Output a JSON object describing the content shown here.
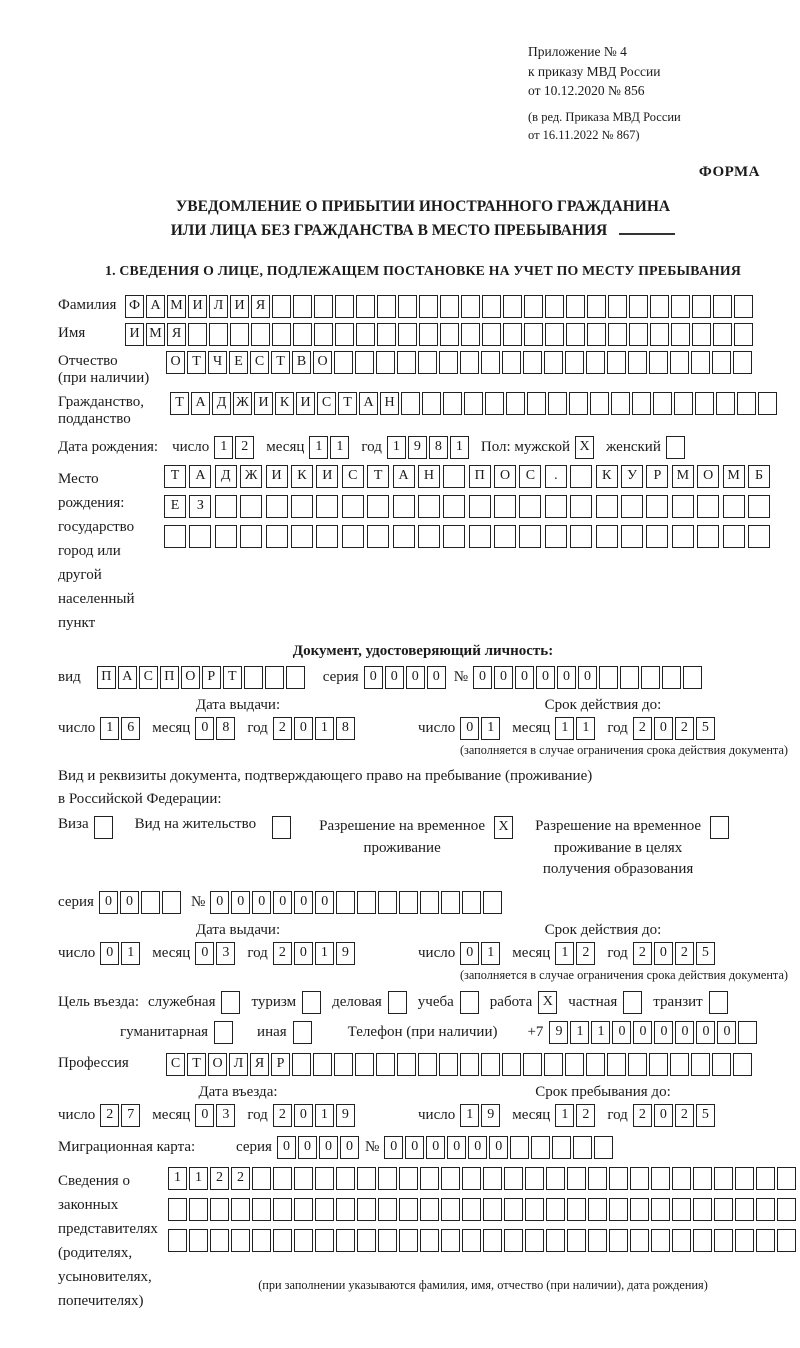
{
  "header": {
    "appendix_lines": [
      "Приложение № 4",
      "к приказу МВД России",
      "от 10.12.2020 № 856"
    ],
    "revision_lines": [
      "(в ред. Приказа МВД России",
      "от 16.11.2022 № 867)"
    ],
    "form_label": "ФОРМА"
  },
  "title": {
    "line1": "УВЕДОМЛЕНИЕ О ПРИБЫТИИ ИНОСТРАННОГО ГРАЖДАНИНА",
    "line2": "ИЛИ ЛИЦА БЕЗ ГРАЖДАНСТВА В МЕСТО ПРЕБЫВАНИЯ"
  },
  "section1_heading": "1. СВЕДЕНИЯ О ЛИЦЕ, ПОДЛЕЖАЩЕМ ПОСТАНОВКЕ НА УЧЕТ ПО МЕСТУ ПРЕБЫВАНИЯ",
  "words": {
    "day": "число",
    "month": "месяц",
    "year": "год",
    "series": "серия",
    "number": "№"
  },
  "surname": {
    "label": "Фамилия",
    "count": 30,
    "cells": "ФАМИЛИЯ"
  },
  "given_name": {
    "label": "Имя",
    "count": 30,
    "cells": "ИМЯ"
  },
  "patronymic": {
    "label": "Отчество",
    "note": "(при наличии)",
    "count": 28,
    "cells": "ОТЧЕСТВО"
  },
  "citizenship": {
    "label_line1": "Гражданство,",
    "label_line2": "подданство",
    "count": 29,
    "cells": "ТАДЖИКИСТАН"
  },
  "birth_date": {
    "label": "Дата рождения:",
    "day": {
      "count": 2,
      "cells": "12"
    },
    "month": {
      "count": 2,
      "cells": "11"
    },
    "year": {
      "count": 4,
      "cells": "1981"
    },
    "sex_label": "Пол: мужской",
    "male_box": {
      "count": 1,
      "cells": "X"
    },
    "female_label": "женский",
    "female_box": {
      "count": 1,
      "cells": ""
    }
  },
  "birth_place": {
    "label_lines": [
      "Место рождения:",
      "государство",
      "город или другой",
      "населенный пункт"
    ],
    "row1": {
      "count": 24,
      "cells": [
        "Т",
        "А",
        "Д",
        "Ж",
        "И",
        "К",
        "И",
        "С",
        "Т",
        "А",
        "Н",
        "",
        "П",
        "О",
        "С",
        ".",
        "",
        "К",
        "У",
        "Р",
        "М",
        "О",
        "М",
        "Б"
      ]
    },
    "row2": {
      "count": 24,
      "cells": "ЕЗ"
    },
    "row3": {
      "count": 24,
      "cells": ""
    }
  },
  "identity_doc": {
    "heading": "Документ, удостоверяющий личность:",
    "type_label": "вид",
    "type": {
      "count": 10,
      "cells": "ПАСПОРТ"
    },
    "series": {
      "count": 4,
      "cells": "0000"
    },
    "number": {
      "count": 11,
      "cells": "000000"
    },
    "issue_heading": "Дата выдачи:",
    "issue_day": {
      "count": 2,
      "cells": "16"
    },
    "issue_month": {
      "count": 2,
      "cells": "08"
    },
    "issue_year": {
      "count": 4,
      "cells": "2018"
    },
    "valid_heading": "Срок действия до:",
    "valid_day": {
      "count": 2,
      "cells": "01"
    },
    "valid_month": {
      "count": 2,
      "cells": "11"
    },
    "valid_year": {
      "count": 4,
      "cells": "2025"
    },
    "valid_note": "(заполняется в случае ограничения срока действия документа)"
  },
  "residence_doc": {
    "intro_line1": "Вид и реквизиты документа, подтверждающего право на пребывание (проживание)",
    "intro_line2": "в Российской Федерации:",
    "visa_label": "Виза",
    "visa_box": {
      "count": 1,
      "cells": ""
    },
    "residence_permit_label": "Вид на жительство",
    "residence_permit_box": {
      "count": 1,
      "cells": ""
    },
    "temp_permit_label_line1": "Разрешение на временное",
    "temp_permit_label_line2": "проживание",
    "temp_permit_box": {
      "count": 1,
      "cells": "X"
    },
    "edu_permit_label_line1": "Разрешение на временное",
    "edu_permit_label_line2": "проживание в целях",
    "edu_permit_label_line3": "получения образования",
    "edu_permit_box": {
      "count": 1,
      "cells": ""
    },
    "series": {
      "count": 4,
      "cells": "00"
    },
    "number": {
      "count": 14,
      "cells": "000000"
    },
    "issue_heading": "Дата выдачи:",
    "issue_day": {
      "count": 2,
      "cells": "01"
    },
    "issue_month": {
      "count": 2,
      "cells": "03"
    },
    "issue_year": {
      "count": 4,
      "cells": "2019"
    },
    "valid_heading": "Срок действия до:",
    "valid_day": {
      "count": 2,
      "cells": "01"
    },
    "valid_month": {
      "count": 2,
      "cells": "12"
    },
    "valid_year": {
      "count": 4,
      "cells": "2025"
    },
    "valid_note": "(заполняется в случае ограничения срока действия документа)"
  },
  "visit_purpose": {
    "label": "Цель въезда:",
    "options_line1": [
      {
        "label": "служебная",
        "box": {
          "count": 1,
          "cells": ""
        }
      },
      {
        "label": "туризм",
        "box": {
          "count": 1,
          "cells": ""
        }
      },
      {
        "label": "деловая",
        "box": {
          "count": 1,
          "cells": ""
        }
      },
      {
        "label": "учеба",
        "box": {
          "count": 1,
          "cells": ""
        }
      },
      {
        "label": "работа",
        "box": {
          "count": 1,
          "cells": "X"
        }
      },
      {
        "label": "частная",
        "box": {
          "count": 1,
          "cells": ""
        }
      },
      {
        "label": "транзит",
        "box": {
          "count": 1,
          "cells": ""
        }
      }
    ],
    "options_line2": [
      {
        "label": "гуманитарная",
        "box": {
          "count": 1,
          "cells": ""
        }
      },
      {
        "label": "иная",
        "box": {
          "count": 1,
          "cells": ""
        }
      }
    ],
    "phone_label": "Телефон (при наличии)",
    "phone_prefix": "+7",
    "phone": {
      "count": 10,
      "cells": "911000000"
    }
  },
  "profession": {
    "label": "Профессия",
    "count": 28,
    "cells": "СТОЛЯР"
  },
  "entry": {
    "date_heading": "Дата въезда:",
    "day": {
      "count": 2,
      "cells": "27"
    },
    "month": {
      "count": 2,
      "cells": "03"
    },
    "year": {
      "count": 4,
      "cells": "2019"
    },
    "until_heading": "Срок пребывания до:",
    "until_day": {
      "count": 2,
      "cells": "19"
    },
    "until_month": {
      "count": 2,
      "cells": "12"
    },
    "until_year": {
      "count": 4,
      "cells": "2025"
    }
  },
  "migration_card": {
    "label": "Миграционная карта:",
    "series": {
      "count": 4,
      "cells": "0000"
    },
    "number": {
      "count": 11,
      "cells": "000000"
    }
  },
  "representatives": {
    "label_lines": [
      "Сведения о",
      "законных",
      "представителях",
      "(родителях,",
      "усыновителях,",
      "попечителях)"
    ],
    "row1": {
      "count": 30,
      "cells": "1122"
    },
    "row2": {
      "count": 30,
      "cells": ""
    },
    "row3": {
      "count": 30,
      "cells": ""
    },
    "note": "(при заполнении указываются фамилия, имя, отчество (при наличии), дата рождения)"
  }
}
